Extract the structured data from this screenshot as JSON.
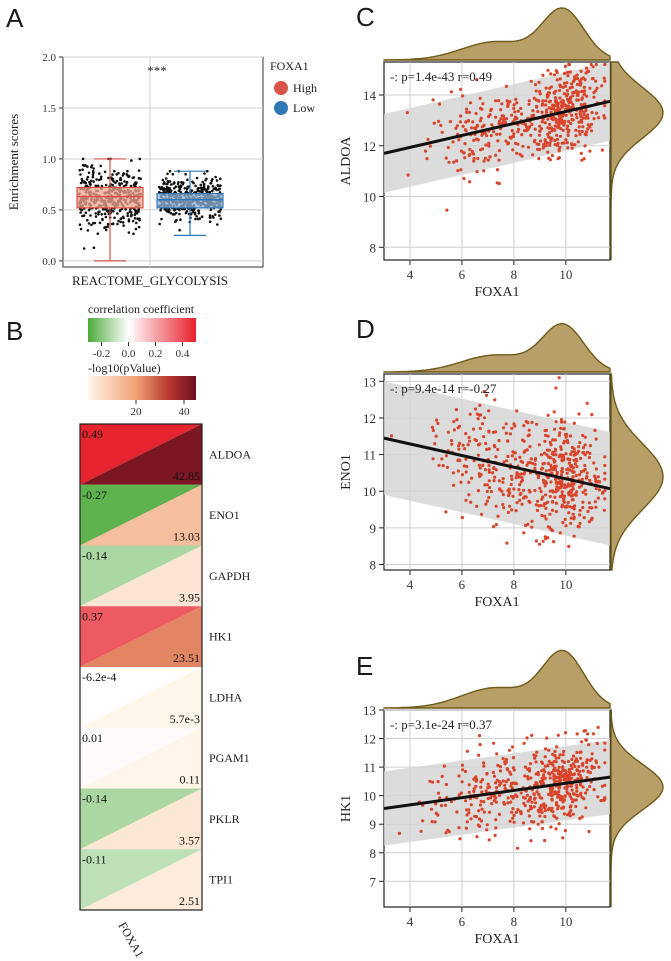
{
  "panels": {
    "A": {
      "letter": "A",
      "ylabel": "Enrichment scores",
      "yticks": [
        "0.0",
        "0.5",
        "1.0",
        "1.5",
        "2.0"
      ],
      "ylim": [
        0,
        2.0
      ],
      "xlabel": "REACTOME_GLYCOLYSIS",
      "significance": "***",
      "legend_title": "FOXA1",
      "legend_items": [
        {
          "label": "High",
          "color": "#d9534a"
        },
        {
          "label": "Low",
          "color": "#2f78b7"
        }
      ],
      "boxes": [
        {
          "group": "High",
          "min": 0.0,
          "q1": 0.52,
          "median": 0.63,
          "q3": 0.72,
          "max": 1.0,
          "fill": "#f0a58c",
          "stroke": "#d9534a"
        },
        {
          "group": "Low",
          "min": 0.25,
          "q1": 0.52,
          "median": 0.6,
          "q3": 0.66,
          "max": 0.88,
          "fill": "#8fb5d9",
          "stroke": "#2f78b7"
        }
      ]
    },
    "B": {
      "letter": "B",
      "cor_legend_title": "correlation coefficient",
      "cor_ticks": [
        "-0.2",
        "0.0",
        "0.2",
        "0.4"
      ],
      "cor_range": [
        -0.3,
        0.5
      ],
      "p_legend_title": "-log10(pValue)",
      "p_ticks": [
        "20",
        "40"
      ],
      "p_range": [
        0,
        45
      ],
      "xlabel": "FOXA1",
      "rows": [
        {
          "gene": "ALDOA",
          "cor": 0.49,
          "cor_label": "0.49",
          "p": 42.85,
          "p_label": "42.85"
        },
        {
          "gene": "ENO1",
          "cor": -0.27,
          "cor_label": "-0.27",
          "p": 13.03,
          "p_label": "13.03"
        },
        {
          "gene": "GAPDH",
          "cor": -0.14,
          "cor_label": "-0.14",
          "p": 3.95,
          "p_label": "3.95"
        },
        {
          "gene": "HK1",
          "cor": 0.37,
          "cor_label": "0.37",
          "p": 23.51,
          "p_label": "23.51"
        },
        {
          "gene": "LDHA",
          "cor": -0.00062,
          "cor_label": "-6.2e-4",
          "p": 0.0057,
          "p_label": "5.7e-3"
        },
        {
          "gene": "PGAM1",
          "cor": 0.01,
          "cor_label": "0.01",
          "p": 0.11,
          "p_label": "0.11"
        },
        {
          "gene": "PKLR",
          "cor": -0.14,
          "cor_label": "-0.14",
          "p": 3.57,
          "p_label": "3.57"
        },
        {
          "gene": "TPI1",
          "cor": -0.11,
          "cor_label": "-0.11",
          "p": 2.51,
          "p_label": "2.51"
        }
      ]
    },
    "C": {
      "letter": "C",
      "annotation": "-: p=1.4e-43 r=0.49",
      "xlabel": "FOXA1",
      "ylabel": "ALDOA",
      "xticks": [
        "4",
        "6",
        "8",
        "10"
      ],
      "yticks": [
        "8",
        "10",
        "12",
        "14"
      ],
      "xlim": [
        3,
        11.7
      ],
      "ylim": [
        7.5,
        15.3
      ]
    },
    "D": {
      "letter": "D",
      "annotation": "-: p=9.4e-14 r=-0.27",
      "xlabel": "FOXA1",
      "ylabel": "ENO1",
      "xticks": [
        "4",
        "6",
        "8",
        "10"
      ],
      "yticks": [
        "8",
        "9",
        "10",
        "11",
        "12",
        "13"
      ],
      "xlim": [
        3,
        11.7
      ],
      "ylim": [
        7.85,
        13.2
      ]
    },
    "E": {
      "letter": "E",
      "annotation": "-: p=3.1e-24 r=0.37",
      "xlabel": "FOXA1",
      "ylabel": "HK1",
      "xticks": [
        "4",
        "6",
        "8",
        "10"
      ],
      "yticks": [
        "7",
        "8",
        "9",
        "10",
        "11",
        "12",
        "13"
      ],
      "xlim": [
        3,
        11.7
      ],
      "ylim": [
        6.1,
        13.0
      ]
    }
  },
  "chart_data": [
    {
      "type": "box",
      "title": "",
      "xlabel": "REACTOME_GLYCOLYSIS",
      "ylabel": "Enrichment scores",
      "ylim": [
        0,
        2.0
      ],
      "series": [
        {
          "name": "High",
          "min": 0.0,
          "q1": 0.52,
          "median": 0.63,
          "q3": 0.72,
          "max": 1.0
        },
        {
          "name": "Low",
          "min": 0.25,
          "q1": 0.52,
          "median": 0.6,
          "q3": 0.66,
          "max": 0.88
        }
      ]
    },
    {
      "type": "heatmap",
      "xlabel": "FOXA1",
      "categories": [
        "ALDOA",
        "ENO1",
        "GAPDH",
        "HK1",
        "LDHA",
        "PGAM1",
        "PKLR",
        "TPI1"
      ],
      "series": [
        {
          "name": "correlation coefficient",
          "values": [
            0.49,
            -0.27,
            -0.14,
            0.37,
            -0.00062,
            0.01,
            -0.14,
            -0.11
          ]
        },
        {
          "name": "-log10(pValue)",
          "values": [
            42.85,
            13.03,
            3.95,
            23.51,
            0.0057,
            0.11,
            3.57,
            2.51
          ]
        }
      ]
    },
    {
      "type": "scatter",
      "xlabel": "FOXA1",
      "ylabel": "ALDOA",
      "xlim": [
        3,
        11.7
      ],
      "ylim": [
        7.5,
        15.3
      ],
      "regression": {
        "x": [
          3,
          11.7
        ],
        "y": [
          11.7,
          13.75
        ],
        "r": 0.49,
        "p": "1.4e-43"
      }
    },
    {
      "type": "scatter",
      "xlabel": "FOXA1",
      "ylabel": "ENO1",
      "xlim": [
        3,
        11.7
      ],
      "ylim": [
        7.85,
        13.2
      ],
      "regression": {
        "x": [
          3,
          11.7
        ],
        "y": [
          11.45,
          10.07
        ],
        "r": -0.27,
        "p": "9.4e-14"
      }
    },
    {
      "type": "scatter",
      "xlabel": "FOXA1",
      "ylabel": "HK1",
      "xlim": [
        3,
        11.7
      ],
      "ylim": [
        6.1,
        13.0
      ],
      "regression": {
        "x": [
          3,
          11.7
        ],
        "y": [
          9.55,
          10.65
        ],
        "r": 0.37,
        "p": "3.1e-24"
      }
    }
  ],
  "colors": {
    "high": "#d9534a",
    "low": "#2f78b7",
    "point": "#d9452b",
    "density_fill": "#b89f67",
    "density_stroke": "#6f5a1a",
    "band": "#d3d3d3",
    "grid": "#cfcfcf"
  }
}
